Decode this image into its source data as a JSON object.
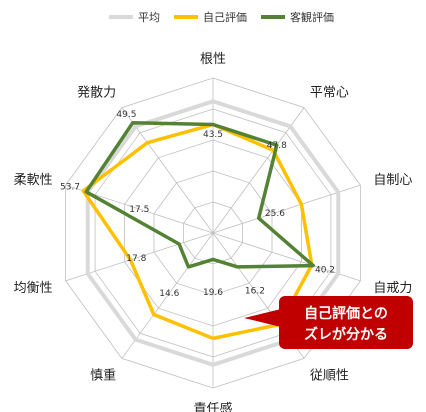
{
  "chart_data": {
    "type": "radar",
    "title": "",
    "axes": [
      "根性",
      "平常心",
      "自制心",
      "自戒力",
      "従順性",
      "責任感",
      "慎重",
      "均衡性",
      "柔軟性",
      "発散力"
    ],
    "rmax": 100,
    "rings": 5,
    "series": [
      {
        "name": "平均",
        "color": "#d9d9d9",
        "values": [
          85,
          85,
          85,
          85,
          85,
          85,
          85,
          85,
          85,
          85
        ]
      },
      {
        "name": "自己評価",
        "color": "#ffc000",
        "values": [
          70,
          66,
          60,
          67,
          73,
          68,
          65,
          56,
          88,
          72
        ]
      },
      {
        "name": "客観評価",
        "color": "#548235",
        "values": [
          70,
          70,
          31,
          68,
          27,
          17,
          27,
          23,
          86,
          88
        ]
      }
    ],
    "value_labels": [
      {
        "axis": 0,
        "text": "43.5"
      },
      {
        "axis": 1,
        "text": "47.8"
      },
      {
        "axis": 2,
        "text": "25.6"
      },
      {
        "axis": 3,
        "text": "40.2"
      },
      {
        "axis": 4,
        "text": "16.2"
      },
      {
        "axis": 5,
        "text": "19.6"
      },
      {
        "axis": 6,
        "text": "14.6"
      },
      {
        "axis": 7,
        "text": "17.8"
      },
      {
        "axis": 8,
        "text": "17.5"
      },
      {
        "axis": 8,
        "text": "53.7"
      },
      {
        "axis": 9,
        "text": "49.5"
      }
    ],
    "legend_position": "top"
  },
  "callout": {
    "line1": "自己評価との",
    "line2": "ズレが分かる",
    "color": "#c00000"
  }
}
